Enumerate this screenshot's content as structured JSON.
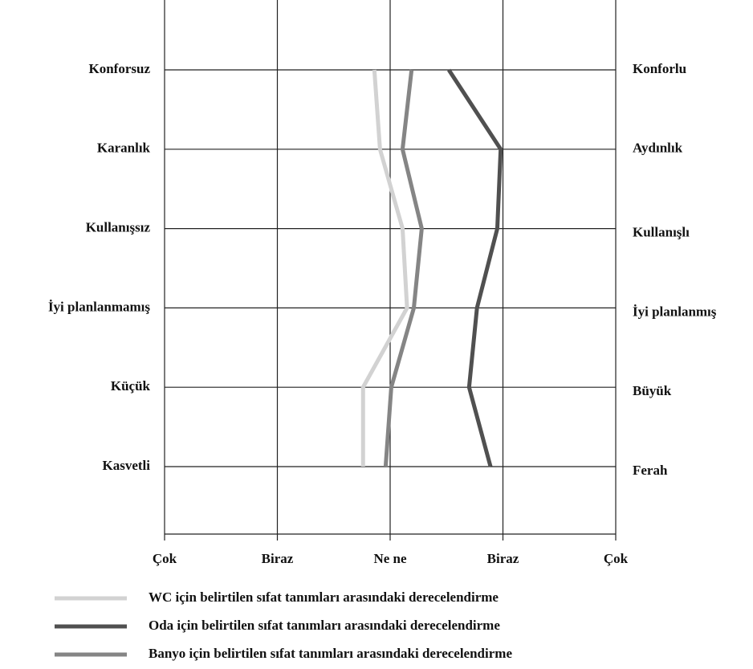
{
  "chart_data": {
    "type": "line",
    "orientation": "horizontal",
    "categories": [
      "Konforsuz",
      "Karanlık",
      "Kullanışsız",
      "İyi planlanmamış",
      "Küçük",
      "Kasvetli"
    ],
    "right_categories": [
      "Konforlu",
      "Aydınlık",
      "Kullanışlı",
      "İyi planlanmış",
      "Büyük",
      "Ferah"
    ],
    "xlim": [
      -2,
      2
    ],
    "xticks": [
      {
        "value": -2,
        "label": "Çok"
      },
      {
        "value": -1,
        "label": "Biraz"
      },
      {
        "value": 0,
        "label": "Ne ne"
      },
      {
        "value": 1,
        "label": "Biraz"
      },
      {
        "value": 2,
        "label": "Çok"
      }
    ],
    "grid": true,
    "series": [
      {
        "name": "WC için belirtilen sıfat tanımları arasındaki derecelendirme",
        "color": "#d2d2d2",
        "values": [
          -0.14,
          -0.09,
          0.11,
          0.15,
          -0.24,
          -0.24
        ]
      },
      {
        "name": "Oda için belirtilen sıfat tanımları arasındaki derecelendirme",
        "color": "#505050",
        "values": [
          0.52,
          0.98,
          0.95,
          0.77,
          0.7,
          0.89
        ]
      },
      {
        "name": "Banyo için belirtilen sıfat tanımları arasındaki derecelendirme",
        "color": "#858585",
        "values": [
          0.19,
          0.11,
          0.28,
          0.21,
          0.01,
          -0.04
        ]
      }
    ]
  }
}
